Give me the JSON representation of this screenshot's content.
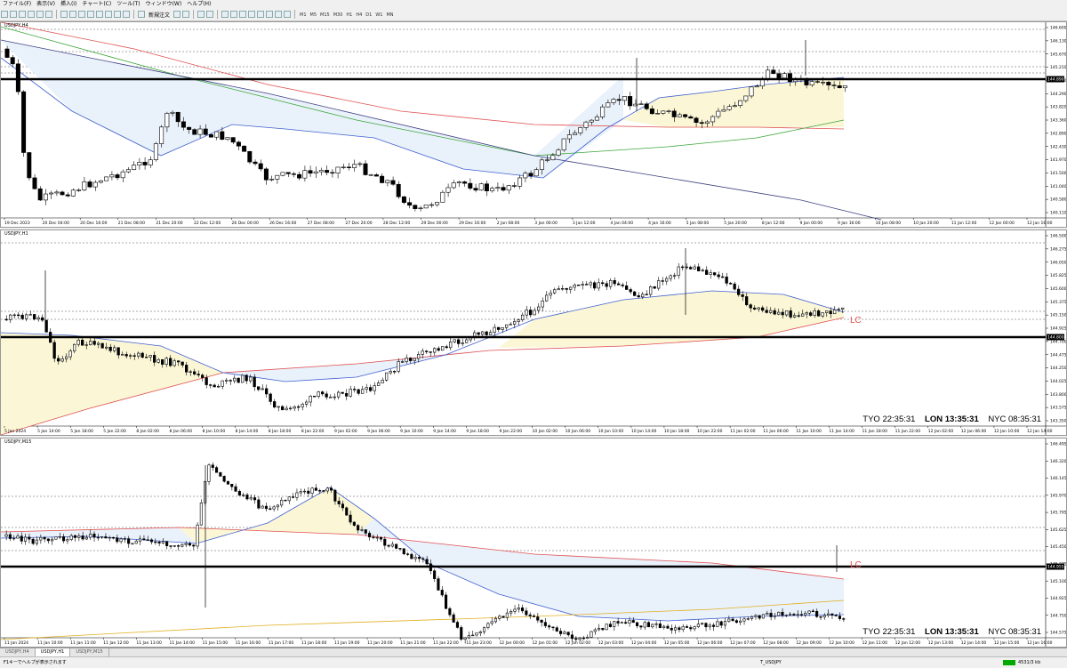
{
  "menu": [
    "ファイル(F)",
    "表示(V)",
    "挿入(I)",
    "チャート(C)",
    "ツール(T)",
    "ウィンドウ(W)",
    "ヘルプ(H)"
  ],
  "toolbar": {
    "new_order": "新規注文",
    "timeframes": [
      "M1",
      "M5",
      "M15",
      "M30",
      "H1",
      "H4",
      "D1",
      "W1",
      "MN"
    ]
  },
  "charts": [
    {
      "title": "USDJPY,H4",
      "prices": [
        "146.600",
        "146.130",
        "145.670",
        "145.210",
        "144.750",
        "144.290",
        "143.820",
        "143.360",
        "142.890",
        "142.430",
        "141.970",
        "141.500",
        "141.040",
        "140.580",
        "140.110"
      ],
      "current_price": "144.890",
      "times": [
        "19 Dec 2023",
        "20 Dec 04:00",
        "20 Dec 16:00",
        "21 Dec 08:00",
        "21 Dec 20:00",
        "22 Dec 12:00",
        "26 Dec 00:00",
        "26 Dec 16:00",
        "27 Dec 08:00",
        "27 Dec 20:00",
        "28 Dec 12:00",
        "29 Dec 00:00",
        "29 Dec 16:00",
        "2 Jan 08:00",
        "3 Jan 00:00",
        "3 Jan 12:00",
        "4 Jan 04:00",
        "4 Jan 16:00",
        "5 Jan 08:00",
        "5 Jan 20:00",
        "8 Jan 12:00",
        "9 Jan 00:00",
        "9 Jan 16:00",
        "10 Jan 08:00",
        "10 Jan 20:00",
        "11 Jan 12:00",
        "12 Jan 00:00",
        "12 Jan 16:00"
      ]
    },
    {
      "title": "USDJPY,H1",
      "prices": [
        "146.500",
        "146.275",
        "146.050",
        "145.825",
        "145.600",
        "145.375",
        "145.150",
        "144.925",
        "144.700",
        "144.475",
        "144.250",
        "144.025",
        "143.800",
        "143.575",
        "143.350"
      ],
      "current_price": "144.800",
      "lc": "LC",
      "times": [
        "5 Jan 2024",
        "5 Jan 14:00",
        "5 Jan 18:00",
        "5 Jan 22:00",
        "8 Jan 02:00",
        "8 Jan 06:00",
        "8 Jan 10:00",
        "8 Jan 14:00",
        "8 Jan 18:00",
        "8 Jan 22:00",
        "9 Jan 02:00",
        "9 Jan 06:00",
        "9 Jan 10:00",
        "9 Jan 14:00",
        "9 Jan 18:00",
        "9 Jan 22:00",
        "10 Jan 02:00",
        "10 Jan 06:00",
        "10 Jan 10:00",
        "10 Jan 14:00",
        "10 Jan 18:00",
        "10 Jan 22:00",
        "11 Jan 02:00",
        "11 Jan 06:00",
        "11 Jan 10:00",
        "11 Jan 14:00",
        "11 Jan 18:00",
        "11 Jan 22:00",
        "12 Jan 02:00",
        "12 Jan 06:00",
        "12 Jan 10:00",
        "12 Jan 14:00"
      ],
      "clock": {
        "tyo": "TYO 22:35:31",
        "lon": "LON 13:35:31",
        "nyc": "NYC 08:35:31"
      }
    },
    {
      "title": "USDJPY,M15",
      "prices": [
        "146.495",
        "146.320",
        "146.145",
        "145.970",
        "145.795",
        "145.625",
        "145.450",
        "145.275",
        "145.100",
        "144.925",
        "144.750",
        "144.575"
      ],
      "current_price": "144.955",
      "lc": "LC",
      "times": [
        "11 Jan 2024",
        "11 Jan 10:00",
        "11 Jan 11:00",
        "11 Jan 12:00",
        "11 Jan 13:00",
        "11 Jan 14:00",
        "11 Jan 15:00",
        "11 Jan 16:00",
        "11 Jan 17:00",
        "11 Jan 18:00",
        "11 Jan 19:00",
        "11 Jan 20:00",
        "11 Jan 21:00",
        "11 Jan 22:00",
        "11 Jan 23:00",
        "12 Jan 00:00",
        "12 Jan 01:00",
        "12 Jan 02:00",
        "12 Jan 03:00",
        "12 Jan 04:00",
        "12 Jan 05:00",
        "12 Jan 06:00",
        "12 Jan 07:00",
        "12 Jan 08:00",
        "12 Jan 09:00",
        "12 Jan 10:00",
        "12 Jan 11:00",
        "12 Jan 12:00",
        "12 Jan 13:00",
        "12 Jan 14:00",
        "12 Jan 15:00",
        "12 Jan 16:00"
      ],
      "clock": {
        "tyo": "TYO 22:35:31",
        "lon": "LON 13:35:31",
        "nyc": "NYC 08:35:31"
      }
    }
  ],
  "tabs": [
    "USDJPY,H4",
    "USDJPY,H1",
    "USDJPY,M15"
  ],
  "status": {
    "help": "F1キーでヘルプが表示されます",
    "profile": "T_USDJPY",
    "traffic": "4531/3 kb"
  }
}
